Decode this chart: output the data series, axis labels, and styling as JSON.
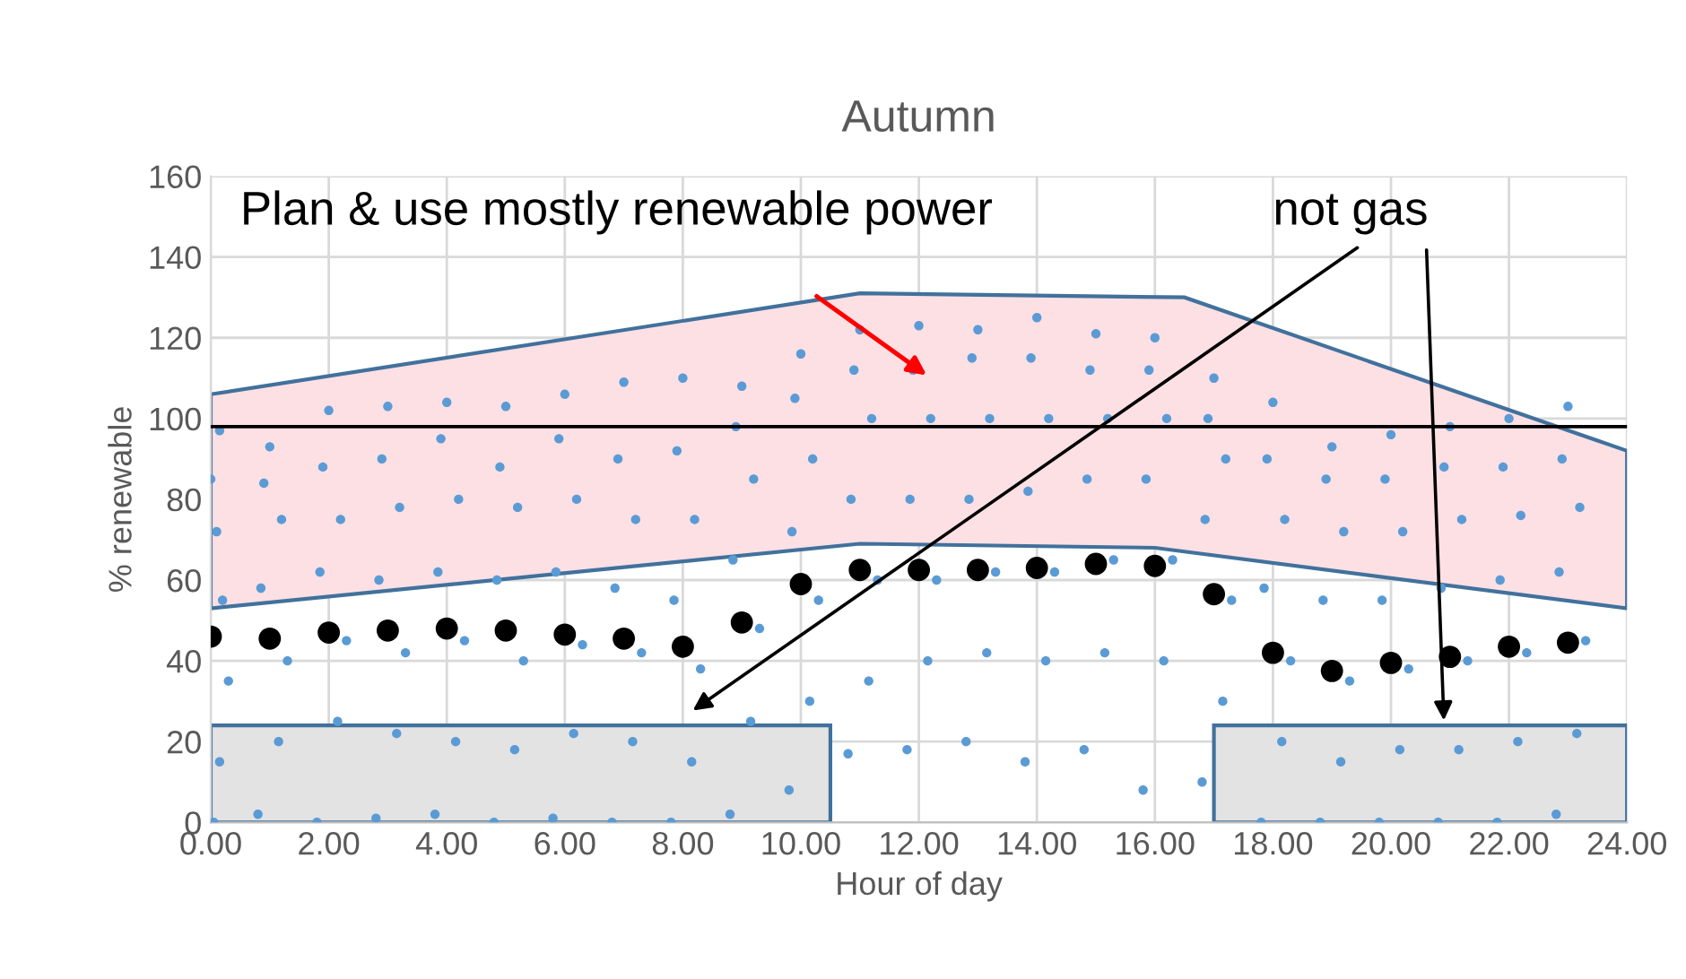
{
  "chart_data": {
    "type": "scatter",
    "title": "Autumn",
    "xlabel": "Hour of day",
    "ylabel": "% renewable",
    "xlim": [
      0,
      24
    ],
    "xticks": [
      {
        "value": 0,
        "label": "0.00"
      },
      {
        "value": 2,
        "label": "2.00"
      },
      {
        "value": 4,
        "label": "4.00"
      },
      {
        "value": 6,
        "label": "6.00"
      },
      {
        "value": 8,
        "label": "8.00"
      },
      {
        "value": 10,
        "label": "10.00"
      },
      {
        "value": 12,
        "label": "12.00"
      },
      {
        "value": 14,
        "label": "14.00"
      },
      {
        "value": 16,
        "label": "16.00"
      },
      {
        "value": 18,
        "label": "18.00"
      },
      {
        "value": 20,
        "label": "20.00"
      },
      {
        "value": 22,
        "label": "22.00"
      },
      {
        "value": 24,
        "label": "24.00"
      }
    ],
    "ylim": [
      0,
      160
    ],
    "yticks": [
      0,
      20,
      40,
      60,
      80,
      100,
      120,
      140,
      160
    ],
    "grid": true,
    "marker": "circle",
    "series": [
      {
        "color": "#5b9bd5",
        "x": [
          0.05,
          0.15,
          0.3,
          0.2,
          0.1,
          0.0,
          0.15,
          0.8,
          1.15,
          1.3,
          0.85,
          1.2,
          0.9,
          1.0,
          1.8,
          2.15,
          2.3,
          1.85,
          2.2,
          1.9,
          2.0,
          2.8,
          3.15,
          3.3,
          2.85,
          3.2,
          2.9,
          3.0,
          3.8,
          4.15,
          4.3,
          3.85,
          4.2,
          3.9,
          4.0,
          4.8,
          5.15,
          5.3,
          4.85,
          5.2,
          4.9,
          5.0,
          5.8,
          6.15,
          6.3,
          5.85,
          6.2,
          5.9,
          6.0,
          6.8,
          7.15,
          7.3,
          6.85,
          7.2,
          6.9,
          7.0,
          7.8,
          8.15,
          8.3,
          7.85,
          8.2,
          7.9,
          8.0,
          8.8,
          9.15,
          9.3,
          8.85,
          9.2,
          8.9,
          9.0,
          9.8,
          10.15,
          10.3,
          9.85,
          10.2,
          9.9,
          10.0,
          10.8,
          11.15,
          11.3,
          10.85,
          11.2,
          10.9,
          11.0,
          11.8,
          12.15,
          12.3,
          11.85,
          12.2,
          11.9,
          12.0,
          12.8,
          13.15,
          13.3,
          12.85,
          13.2,
          12.9,
          13.0,
          13.8,
          14.15,
          14.3,
          13.85,
          14.2,
          13.9,
          14.0,
          14.8,
          15.15,
          15.3,
          14.85,
          15.2,
          14.9,
          15.0,
          15.8,
          16.15,
          16.3,
          15.85,
          16.2,
          15.9,
          16.0,
          16.8,
          17.15,
          17.3,
          16.85,
          17.2,
          16.9,
          17.0,
          17.8,
          18.15,
          18.3,
          17.85,
          18.2,
          17.9,
          18.0,
          18.8,
          19.15,
          19.3,
          18.85,
          19.2,
          18.9,
          19.0,
          19.8,
          20.15,
          20.3,
          19.85,
          20.2,
          19.9,
          20.0,
          20.8,
          21.15,
          21.3,
          20.85,
          21.2,
          20.9,
          21.0,
          21.8,
          22.15,
          22.3,
          21.85,
          22.2,
          21.9,
          22.0,
          22.8,
          23.15,
          23.3,
          22.85,
          23.2,
          22.9,
          23.0
        ],
        "values": [
          0,
          15,
          35,
          55,
          72,
          85,
          97,
          2,
          20,
          40,
          58,
          75,
          84,
          93,
          0,
          25,
          45,
          62,
          75,
          88,
          102,
          1,
          22,
          42,
          60,
          78,
          90,
          103,
          2,
          20,
          45,
          62,
          80,
          95,
          104,
          0,
          18,
          40,
          60,
          78,
          88,
          103,
          1,
          22,
          44,
          62,
          80,
          95,
          106,
          0,
          20,
          42,
          58,
          75,
          90,
          109,
          0,
          15,
          38,
          55,
          75,
          92,
          110,
          2,
          25,
          48,
          65,
          85,
          98,
          108,
          8,
          30,
          55,
          72,
          90,
          105,
          116,
          17,
          35,
          60,
          80,
          100,
          112,
          122,
          18,
          40,
          60,
          80,
          100,
          112,
          123,
          20,
          42,
          62,
          80,
          100,
          115,
          122,
          15,
          40,
          62,
          82,
          100,
          115,
          125,
          18,
          42,
          65,
          85,
          100,
          112,
          121,
          8,
          40,
          65,
          85,
          100,
          112,
          120,
          10,
          30,
          55,
          75,
          90,
          100,
          110,
          0,
          20,
          40,
          58,
          75,
          90,
          104,
          0,
          15,
          35,
          55,
          72,
          85,
          93,
          0,
          18,
          38,
          55,
          72,
          85,
          96,
          0,
          18,
          40,
          58,
          75,
          88,
          98,
          0,
          20,
          42,
          60,
          76,
          88,
          100,
          2,
          22,
          45,
          62,
          78,
          90,
          103
        ]
      },
      {
        "color": "#000000",
        "x": [
          0,
          1,
          2,
          3,
          4,
          5,
          6,
          7,
          8,
          9,
          10,
          11,
          12,
          13,
          14,
          15,
          16,
          17,
          18,
          19,
          20,
          21,
          22,
          23
        ],
        "values": [
          46,
          45.5,
          47,
          47.5,
          48,
          47.5,
          46.5,
          45.5,
          43.5,
          49.5,
          59,
          62.5,
          62.5,
          62.5,
          63,
          64,
          63.5,
          56.5,
          42,
          37.5,
          39.5,
          41,
          43.5,
          44.5
        ]
      }
    ],
    "ref_lines": [
      {
        "axis": "y",
        "value": 98,
        "color": "#000000"
      }
    ],
    "annotations": [
      "Plan & use mostly renewable power",
      "not gas"
    ]
  }
}
